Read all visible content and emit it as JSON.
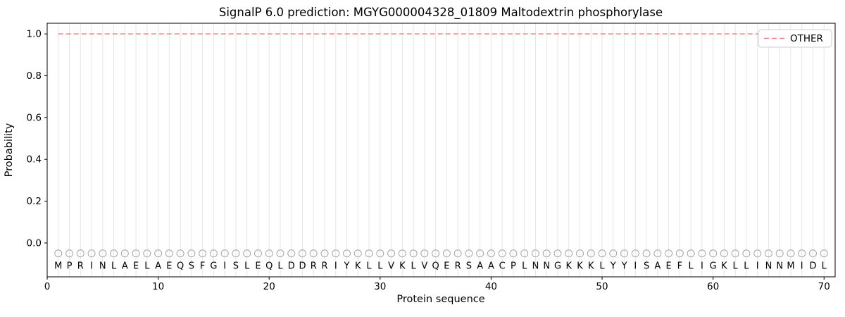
{
  "chart": {
    "title": "SignalP 6.0 prediction: MGYG000004328_01809 Maltodextrin phosphorylase",
    "xlabel": "Protein sequence",
    "ylabel": "Probability",
    "legend": {
      "label": "OTHER",
      "position": "upper right"
    }
  },
  "chart_data": {
    "type": "line",
    "title": "SignalP 6.0 prediction: MGYG000004328_01809 Maltodextrin phosphorylase",
    "xlabel": "Protein sequence",
    "ylabel": "Probability",
    "xlim": [
      0,
      71
    ],
    "ylim": [
      -0.162,
      1.051
    ],
    "xticks": [
      0,
      10,
      20,
      30,
      40,
      50,
      60,
      70
    ],
    "yticks": [
      0.0,
      0.2,
      0.4,
      0.6,
      0.8,
      1.0
    ],
    "grid": "vertical-per-residue",
    "grid_color": "#e6e6e6",
    "sequence": "MPRINLAELAEQSFGISLEQLDDRRIYKLLVKLVQERSAACPLNNGKKKLYYISAEFLIGKLLINNMIDL",
    "marker_y": -0.05,
    "letter_y": -0.108,
    "marker_color": "#a6a6a6",
    "series": [
      {
        "name": "OTHER",
        "color": "#f28080",
        "dashed": true,
        "x_start": 1,
        "values": [
          1.0,
          1.0,
          1.0,
          1.0,
          1.0,
          1.0,
          1.0,
          1.0,
          1.0,
          1.0,
          1.0,
          1.0,
          1.0,
          1.0,
          1.0,
          1.0,
          1.0,
          1.0,
          1.0,
          1.0,
          1.0,
          1.0,
          1.0,
          1.0,
          1.0,
          1.0,
          1.0,
          1.0,
          1.0,
          1.0,
          1.0,
          1.0,
          1.0,
          1.0,
          1.0,
          1.0,
          1.0,
          1.0,
          1.0,
          1.0,
          1.0,
          1.0,
          1.0,
          1.0,
          1.0,
          1.0,
          1.0,
          1.0,
          1.0,
          1.0,
          1.0,
          1.0,
          1.0,
          1.0,
          1.0,
          1.0,
          1.0,
          1.0,
          1.0,
          1.0,
          1.0,
          1.0,
          1.0,
          1.0,
          1.0,
          1.0,
          1.0,
          1.0,
          1.0,
          1.0
        ]
      }
    ],
    "legend_position": "upper right"
  }
}
